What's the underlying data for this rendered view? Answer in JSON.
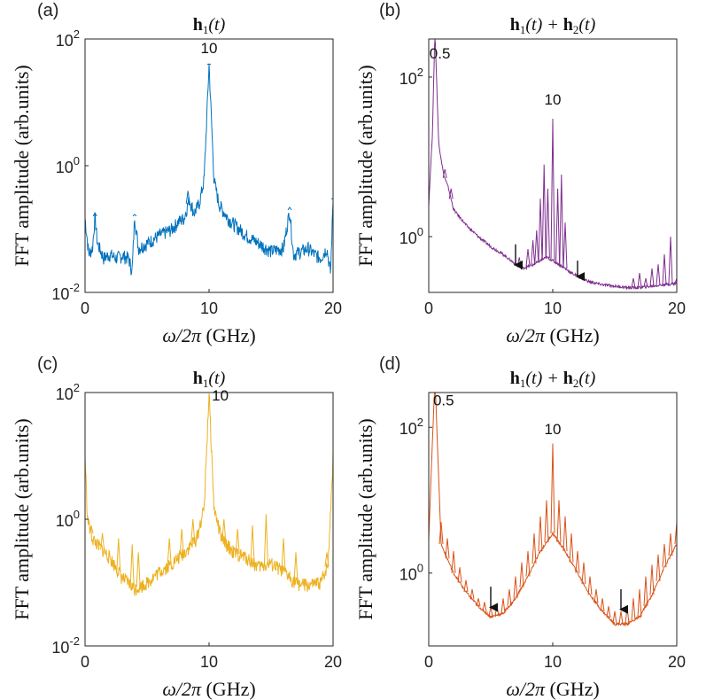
{
  "chart_data": [
    {
      "type": "line",
      "panel_label": "(a)",
      "title": "h1(t)",
      "title_parts": [
        "h",
        "1",
        "(t)"
      ],
      "xlabel": "ω/2π (GHz)",
      "ylabel": "FFT amplitude (arb.units)",
      "xlim": [
        0,
        20
      ],
      "ylim": [
        0.01,
        100
      ],
      "yscale": "log",
      "xticks": [
        "0",
        "10",
        "20"
      ],
      "yticks": [
        {
          "base": "10",
          "exp": "-2",
          "value": 0.01
        },
        {
          "base": "10",
          "exp": "0",
          "value": 1
        },
        {
          "base": "10",
          "exp": "2",
          "value": 100
        }
      ],
      "series": [
        {
          "color": "#0072BD",
          "points": [
            [
              0,
              0.15
            ],
            [
              0.3,
              0.04
            ],
            [
              0.6,
              0.05
            ],
            [
              0.8,
              0.16
            ],
            [
              1,
              0.06
            ],
            [
              1.5,
              0.035
            ],
            [
              2,
              0.04
            ],
            [
              2.5,
              0.035
            ],
            [
              3,
              0.038
            ],
            [
              3.5,
              0.035
            ],
            [
              3.8,
              0.022
            ],
            [
              4,
              0.16
            ],
            [
              4.3,
              0.05
            ],
            [
              5,
              0.06
            ],
            [
              6,
              0.08
            ],
            [
              7,
              0.1
            ],
            [
              7.5,
              0.13
            ],
            [
              8,
              0.15
            ],
            [
              8.4,
              0.3
            ],
            [
              8.8,
              0.18
            ],
            [
              9.2,
              0.25
            ],
            [
              9.6,
              0.6
            ],
            [
              10,
              40
            ],
            [
              10.4,
              0.6
            ],
            [
              10.8,
              0.25
            ],
            [
              11.5,
              0.15
            ],
            [
              12,
              0.12
            ],
            [
              13,
              0.08
            ],
            [
              14,
              0.06
            ],
            [
              15,
              0.045
            ],
            [
              16,
              0.05
            ],
            [
              16.5,
              0.2
            ],
            [
              16.8,
              0.04
            ],
            [
              17.5,
              0.045
            ],
            [
              18,
              0.05
            ],
            [
              18.5,
              0.04
            ],
            [
              19,
              0.035
            ],
            [
              19.5,
              0.05
            ],
            [
              19.8,
              0.02
            ],
            [
              20,
              0.3
            ]
          ],
          "spikes": [
            [
              0.8,
              0.18
            ],
            [
              4,
              0.17
            ],
            [
              8.3,
              0.4
            ],
            [
              10,
              40
            ],
            [
              16.5,
              0.22
            ],
            [
              20,
              0.3
            ]
          ]
        }
      ],
      "annotations": [
        {
          "text": "10",
          "x": 10,
          "y": 60
        }
      ],
      "arrows": []
    },
    {
      "type": "line",
      "panel_label": "(b)",
      "title": "h1(t) + h2(t)",
      "title_parts": [
        "h",
        "1",
        "(t) + ",
        "h",
        "2",
        "(t)"
      ],
      "xlabel": "ω/2π (GHz)",
      "ylabel": "FFT amplitude (arb.units)",
      "xlim": [
        0,
        20
      ],
      "ylim": [
        0.2,
        300
      ],
      "yscale": "log",
      "xticks": [
        "0",
        "10",
        "20"
      ],
      "yticks": [
        {
          "base": "10",
          "exp": "0",
          "value": 1
        },
        {
          "base": "10",
          "exp": "2",
          "value": 100
        }
      ],
      "series": [
        {
          "color": "#7E2F8E",
          "points": [
            [
              0,
              2.5
            ],
            [
              0.3,
              20
            ],
            [
              0.5,
              400
            ],
            [
              0.8,
              15
            ],
            [
              1.2,
              6
            ],
            [
              1.6,
              4
            ],
            [
              2,
              2.2
            ],
            [
              3,
              1.4
            ],
            [
              4,
              1.0
            ],
            [
              5,
              0.75
            ],
            [
              6,
              0.6
            ],
            [
              7,
              0.45
            ],
            [
              7.5,
              0.4
            ],
            [
              8,
              0.42
            ],
            [
              8.5,
              0.45
            ],
            [
              9,
              0.5
            ],
            [
              9.5,
              0.55
            ],
            [
              10,
              0.5
            ],
            [
              10.5,
              0.45
            ],
            [
              11,
              0.4
            ],
            [
              11.5,
              0.35
            ],
            [
              12,
              0.32
            ],
            [
              13,
              0.27
            ],
            [
              14,
              0.25
            ],
            [
              15,
              0.24
            ],
            [
              16,
              0.23
            ],
            [
              17,
              0.23
            ],
            [
              18,
              0.24
            ],
            [
              19,
              0.25
            ],
            [
              20,
              0.26
            ]
          ],
          "spikes": [
            [
              0.5,
              400
            ],
            [
              1.3,
              7
            ],
            [
              1.8,
              4
            ],
            [
              7.3,
              0.55
            ],
            [
              8,
              0.7
            ],
            [
              8.4,
              0.9
            ],
            [
              8.7,
              1.2
            ],
            [
              9.0,
              3
            ],
            [
              9.3,
              8
            ],
            [
              9.6,
              4
            ],
            [
              10,
              30
            ],
            [
              10.4,
              4
            ],
            [
              10.7,
              6
            ],
            [
              11.0,
              1.5
            ],
            [
              16.5,
              0.3
            ],
            [
              17,
              0.35
            ],
            [
              17.5,
              0.3
            ],
            [
              18,
              0.4
            ],
            [
              18.5,
              0.45
            ],
            [
              19,
              0.6
            ],
            [
              19.5,
              1.0
            ],
            [
              20,
              0.3
            ]
          ]
        }
      ],
      "annotations": [
        {
          "text": "0.5",
          "x": 0.9,
          "y": 170
        },
        {
          "text": "10",
          "x": 10,
          "y": 45
        }
      ],
      "arrows": [
        {
          "x": 7,
          "ytop": 0.8,
          "ybot": 0.42
        },
        {
          "x": 12,
          "ytop": 0.5,
          "ybot": 0.3
        }
      ]
    },
    {
      "type": "line",
      "panel_label": "(c)",
      "title": "h1(t)",
      "title_parts": [
        "h",
        "1",
        "(t)"
      ],
      "xlabel": "ω/2π (GHz)",
      "ylabel": "FFT amplitude (arb.units)",
      "xlim": [
        0,
        20
      ],
      "ylim": [
        0.01,
        100
      ],
      "yscale": "log",
      "xticks": [
        "0",
        "10",
        "20"
      ],
      "yticks": [
        {
          "base": "10",
          "exp": "-2",
          "value": 0.01
        },
        {
          "base": "10",
          "exp": "0",
          "value": 1
        },
        {
          "base": "10",
          "exp": "2",
          "value": 100
        }
      ],
      "series": [
        {
          "color": "#EDB120",
          "points": [
            [
              0,
              10
            ],
            [
              0.2,
              1
            ],
            [
              0.6,
              0.5
            ],
            [
              1,
              0.4
            ],
            [
              2,
              0.25
            ],
            [
              3,
              0.12
            ],
            [
              4,
              0.08
            ],
            [
              5,
              0.1
            ],
            [
              6,
              0.15
            ],
            [
              7,
              0.2
            ],
            [
              8,
              0.3
            ],
            [
              9,
              0.5
            ],
            [
              9.6,
              1.5
            ],
            [
              10,
              100
            ],
            [
              10.4,
              1.5
            ],
            [
              11,
              0.5
            ],
            [
              12,
              0.3
            ],
            [
              13,
              0.25
            ],
            [
              14,
              0.18
            ],
            [
              15,
              0.2
            ],
            [
              16,
              0.15
            ],
            [
              17,
              0.1
            ],
            [
              18,
              0.09
            ],
            [
              19,
              0.1
            ],
            [
              19.6,
              0.2
            ],
            [
              20,
              10
            ]
          ],
          "spikes": [
            [
              0.5,
              0.8
            ],
            [
              1.4,
              0.6
            ],
            [
              2.7,
              0.5
            ],
            [
              3.8,
              0.4
            ],
            [
              4.3,
              0.3
            ],
            [
              6.8,
              0.5
            ],
            [
              7.8,
              0.7
            ],
            [
              8.7,
              1.0
            ],
            [
              10,
              100
            ],
            [
              11.2,
              1.0
            ],
            [
              12.3,
              0.7
            ],
            [
              13.5,
              0.8
            ],
            [
              14.6,
              1.2
            ],
            [
              16,
              0.5
            ],
            [
              17,
              0.3
            ],
            [
              19.5,
              0.3
            ]
          ]
        }
      ],
      "annotations": [
        {
          "text": "10",
          "x": 10.9,
          "y": 75
        }
      ],
      "arrows": []
    },
    {
      "type": "line",
      "panel_label": "(d)",
      "title": "h1(t) + h2(t)",
      "title_parts": [
        "h",
        "1",
        "(t) + ",
        "h",
        "2",
        "(t)"
      ],
      "xlabel": "ω/2π (GHz)",
      "ylabel": "FFT amplitude (arb.units)",
      "xlim": [
        0,
        20
      ],
      "ylim": [
        0.1,
        300
      ],
      "yscale": "log",
      "xticks": [
        "0",
        "10",
        "20"
      ],
      "yticks": [
        {
          "base": "10",
          "exp": "0",
          "value": 1
        },
        {
          "base": "10",
          "exp": "2",
          "value": 100
        }
      ],
      "series": [
        {
          "color": "#D95319",
          "points": [
            [
              0,
              3
            ],
            [
              0.5,
              500
            ],
            [
              1,
              2.5
            ],
            [
              2,
              1.0
            ],
            [
              3,
              0.55
            ],
            [
              4,
              0.35
            ],
            [
              5,
              0.25
            ],
            [
              6,
              0.28
            ],
            [
              7,
              0.45
            ],
            [
              8,
              0.9
            ],
            [
              9,
              2.0
            ],
            [
              10,
              3.5
            ],
            [
              11,
              2.0
            ],
            [
              12,
              1.0
            ],
            [
              13,
              0.5
            ],
            [
              14,
              0.3
            ],
            [
              15,
              0.2
            ],
            [
              16,
              0.2
            ],
            [
              17,
              0.25
            ],
            [
              18,
              0.5
            ],
            [
              19,
              1.2
            ],
            [
              20,
              2.5
            ]
          ],
          "spikes": [
            [
              0.5,
              500
            ],
            [
              1.0,
              5
            ],
            [
              1.5,
              3
            ],
            [
              2.0,
              2
            ],
            [
              2.5,
              1.2
            ],
            [
              3.0,
              0.8
            ],
            [
              3.5,
              0.6
            ],
            [
              4.0,
              0.45
            ],
            [
              4.5,
              0.4
            ],
            [
              5.0,
              0.35
            ],
            [
              5.5,
              0.35
            ],
            [
              6.0,
              0.45
            ],
            [
              6.5,
              0.6
            ],
            [
              7.0,
              0.9
            ],
            [
              7.5,
              1.4
            ],
            [
              8.0,
              2.0
            ],
            [
              8.5,
              3.5
            ],
            [
              9.0,
              6
            ],
            [
              9.5,
              10
            ],
            [
              10,
              60
            ],
            [
              10.5,
              10
            ],
            [
              11,
              6
            ],
            [
              11.5,
              3.5
            ],
            [
              12,
              2.0
            ],
            [
              12.5,
              1.4
            ],
            [
              13,
              0.9
            ],
            [
              13.5,
              0.6
            ],
            [
              14,
              0.45
            ],
            [
              14.5,
              0.35
            ],
            [
              15,
              0.3
            ],
            [
              15.5,
              0.3
            ],
            [
              16,
              0.35
            ],
            [
              16.5,
              0.45
            ],
            [
              17,
              0.6
            ],
            [
              17.5,
              0.9
            ],
            [
              18,
              1.3
            ],
            [
              18.5,
              1.8
            ],
            [
              19,
              2.5
            ],
            [
              19.5,
              3.5
            ],
            [
              20,
              5
            ]
          ]
        }
      ],
      "annotations": [
        {
          "text": "0.5",
          "x": 1.2,
          "y": 200
        },
        {
          "text": "10",
          "x": 10,
          "y": 80
        }
      ],
      "arrows": [
        {
          "x": 5,
          "ytop": 0.65,
          "ybot": 0.32
        },
        {
          "x": 15.5,
          "ytop": 0.6,
          "ybot": 0.3
        }
      ]
    }
  ]
}
